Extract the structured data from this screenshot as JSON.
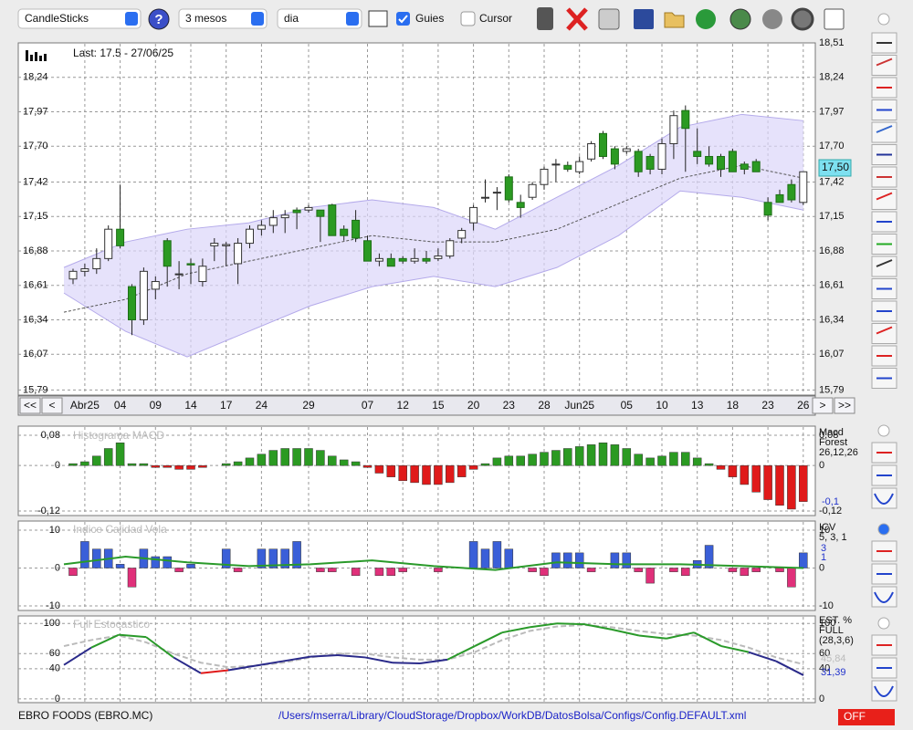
{
  "toolbar": {
    "chart_type": "CandleSticks",
    "period": "3 mesos",
    "interval": "dia",
    "guides": "Guies",
    "cursor": "Cursor"
  },
  "main": {
    "last": "Last: 17.5 - 27/06/25",
    "price_label": "17,50",
    "nav": [
      "<<",
      "<",
      ">",
      ">>"
    ],
    "ylim": [
      15.75,
      18.51
    ],
    "yticks": [
      {
        "value": 18.51,
        "label": "18,51"
      },
      {
        "value": 18.24,
        "label": "18,24"
      },
      {
        "value": 17.97,
        "label": "17,97"
      },
      {
        "value": 17.7,
        "label": "17,70"
      },
      {
        "value": 17.42,
        "label": "17,42"
      },
      {
        "value": 17.15,
        "label": "17,15"
      },
      {
        "value": 16.88,
        "label": "16,88"
      },
      {
        "value": 16.61,
        "label": "16,61"
      },
      {
        "value": 16.34,
        "label": "16,34"
      },
      {
        "value": 16.07,
        "label": "16,07"
      },
      {
        "value": 15.79,
        "label": "15,79"
      }
    ],
    "dates": [
      null,
      "Abr25",
      null,
      null,
      "04",
      null,
      null,
      "09",
      null,
      null,
      "14",
      null,
      null,
      "17",
      null,
      null,
      "24",
      null,
      null,
      null,
      "29",
      null,
      null,
      null,
      null,
      "07",
      null,
      null,
      "12",
      null,
      null,
      "15",
      null,
      null,
      "20",
      null,
      null,
      "23",
      null,
      null,
      "28",
      null,
      null,
      "Jun25",
      null,
      null,
      null,
      "05",
      null,
      null,
      "10",
      null,
      null,
      "13",
      null,
      null,
      "18",
      null,
      null,
      "23",
      null,
      null,
      "26"
    ],
    "candles": [
      [
        16.66,
        16.74,
        16.62,
        16.72
      ],
      [
        16.72,
        16.78,
        16.68,
        16.74
      ],
      [
        16.74,
        16.9,
        16.7,
        16.82
      ],
      [
        16.82,
        17.08,
        16.8,
        17.05
      ],
      [
        17.05,
        17.4,
        16.9,
        16.92
      ],
      [
        16.6,
        16.62,
        16.22,
        16.34
      ],
      [
        16.34,
        16.75,
        16.3,
        16.72
      ],
      [
        16.58,
        16.68,
        16.5,
        16.64
      ],
      [
        16.96,
        16.98,
        16.6,
        16.76
      ],
      [
        16.7,
        16.8,
        16.58,
        16.7
      ],
      [
        16.78,
        16.82,
        16.62,
        16.77
      ],
      [
        16.64,
        16.82,
        16.6,
        16.76
      ],
      [
        16.92,
        16.98,
        16.8,
        16.94
      ],
      [
        16.92,
        16.95,
        16.76,
        16.93
      ],
      [
        16.78,
        16.98,
        16.62,
        16.94
      ],
      [
        16.94,
        17.08,
        16.9,
        17.05
      ],
      [
        17.05,
        17.12,
        17.0,
        17.08
      ],
      [
        17.08,
        17.2,
        17.02,
        17.14
      ],
      [
        17.14,
        17.2,
        17.02,
        17.16
      ],
      [
        17.2,
        17.22,
        17.05,
        17.18
      ],
      [
        17.2,
        17.24,
        17.18,
        17.22
      ],
      [
        17.2,
        17.2,
        16.95,
        17.15
      ],
      [
        17.24,
        17.25,
        17.0,
        17.0
      ],
      [
        17.05,
        17.08,
        16.96,
        17.0
      ],
      [
        17.12,
        17.2,
        16.95,
        16.98
      ],
      [
        16.96,
        17.0,
        16.8,
        16.8
      ],
      [
        16.8,
        16.86,
        16.76,
        16.82
      ],
      [
        16.82,
        16.86,
        16.76,
        16.76
      ],
      [
        16.82,
        16.84,
        16.78,
        16.8
      ],
      [
        16.8,
        16.9,
        16.78,
        16.82
      ],
      [
        16.82,
        16.88,
        16.78,
        16.8
      ],
      [
        16.82,
        16.9,
        16.8,
        16.84
      ],
      [
        16.84,
        16.98,
        16.82,
        16.96
      ],
      [
        16.98,
        17.06,
        16.94,
        17.04
      ],
      [
        17.1,
        17.24,
        17.04,
        17.22
      ],
      [
        17.3,
        17.44,
        17.26,
        17.3
      ],
      [
        17.34,
        17.38,
        17.2,
        17.34
      ],
      [
        17.46,
        17.48,
        17.26,
        17.28
      ],
      [
        17.26,
        17.32,
        17.14,
        17.22
      ],
      [
        17.3,
        17.42,
        17.28,
        17.4
      ],
      [
        17.4,
        17.54,
        17.36,
        17.52
      ],
      [
        17.56,
        17.6,
        17.42,
        17.56
      ],
      [
        17.55,
        17.58,
        17.5,
        17.52
      ],
      [
        17.5,
        17.62,
        17.48,
        17.58
      ],
      [
        17.6,
        17.74,
        17.58,
        17.72
      ],
      [
        17.8,
        17.82,
        17.6,
        17.62
      ],
      [
        17.68,
        17.7,
        17.52,
        17.56
      ],
      [
        17.66,
        17.7,
        17.64,
        17.68
      ],
      [
        17.66,
        17.68,
        17.46,
        17.5
      ],
      [
        17.62,
        17.64,
        17.48,
        17.52
      ],
      [
        17.52,
        17.76,
        17.48,
        17.72
      ],
      [
        17.72,
        17.98,
        17.6,
        17.94
      ],
      [
        17.98,
        18.02,
        17.5,
        17.84
      ],
      [
        17.66,
        17.84,
        17.56,
        17.62
      ],
      [
        17.62,
        17.7,
        17.54,
        17.56
      ],
      [
        17.62,
        17.64,
        17.46,
        17.52
      ],
      [
        17.66,
        17.68,
        17.5,
        17.5
      ],
      [
        17.56,
        17.58,
        17.48,
        17.52
      ],
      [
        17.58,
        17.6,
        17.5,
        17.5
      ],
      [
        17.26,
        17.3,
        17.12,
        17.16
      ],
      [
        17.32,
        17.36,
        17.28,
        17.26
      ],
      [
        17.4,
        17.44,
        17.26,
        17.28
      ],
      [
        17.26,
        17.5,
        17.24,
        17.5
      ]
    ],
    "bands": {
      "upper": [
        16.75,
        16.95,
        17.05,
        17.1,
        17.22,
        17.28,
        17.22,
        17.05,
        17.3,
        17.55,
        17.85,
        17.95,
        17.9
      ],
      "middle": [
        16.4,
        16.5,
        16.7,
        16.8,
        16.9,
        17.0,
        16.95,
        16.95,
        17.05,
        17.25,
        17.45,
        17.55,
        17.45
      ],
      "lower": [
        16.55,
        16.25,
        16.05,
        16.25,
        16.45,
        16.6,
        16.68,
        16.6,
        16.75,
        17.0,
        17.35,
        17.3,
        17.2
      ]
    }
  },
  "macd": {
    "title": "Histograma MACD",
    "legend": [
      "Macd",
      "Forest",
      "26,12,26"
    ],
    "readout": "-0,1",
    "ylim": [
      -0.132,
      0.104
    ],
    "yticks": [
      {
        "value": 0.08,
        "label": "0,08"
      },
      0,
      {
        "value": -0.12,
        "label": "-0,12"
      }
    ],
    "values": [
      0.005,
      0.01,
      0.025,
      0.045,
      0.06,
      0.005,
      0.005,
      -0.005,
      -0.005,
      -0.01,
      -0.01,
      -0.005,
      0,
      0.005,
      0.01,
      0.02,
      0.03,
      0.04,
      0.045,
      0.045,
      0.045,
      0.04,
      0.025,
      0.015,
      0.01,
      -0.005,
      -0.02,
      -0.03,
      -0.04,
      -0.045,
      -0.05,
      -0.05,
      -0.045,
      -0.03,
      -0.01,
      0.005,
      0.02,
      0.025,
      0.025,
      0.03,
      0.035,
      0.04,
      0.045,
      0.05,
      0.055,
      0.06,
      0.055,
      0.045,
      0.03,
      0.02,
      0.025,
      0.035,
      0.035,
      0.02,
      0.005,
      -0.01,
      -0.03,
      -0.05,
      -0.07,
      -0.09,
      -0.105,
      -0.115,
      -0.095
    ]
  },
  "icv": {
    "title": "Indice Calidad Vela",
    "legend": [
      "ICV",
      "5, 3, 1"
    ],
    "readouts": [
      "3",
      "1"
    ],
    "ylim": [
      -11.2,
      12.4
    ],
    "yticks": [
      10,
      0,
      -10
    ],
    "values": [
      -2,
      7,
      5,
      5,
      1,
      -5,
      5,
      3,
      3,
      -1,
      1,
      0,
      0,
      5,
      -1,
      0,
      5,
      5,
      5,
      7,
      0,
      -1,
      -1,
      0,
      -2,
      0,
      -2,
      -2,
      -1,
      0,
      0,
      -1,
      0,
      0,
      7,
      5,
      7,
      5,
      0,
      -1,
      -2,
      4,
      4,
      4,
      -1,
      0,
      4,
      4,
      -1,
      -4,
      0,
      -1,
      -2,
      2,
      6,
      0,
      -1,
      -2,
      -1,
      0,
      -1,
      -5,
      4
    ],
    "line": [
      1,
      3,
      1.5,
      0.5,
      1,
      2,
      0.5,
      -0.5,
      1.5,
      1,
      1,
      0.5,
      0
    ]
  },
  "stoch": {
    "title": "Full Estocastico",
    "legend": [
      "EST. %",
      "FULL",
      "(28,3,6)"
    ],
    "readouts": [
      "45,84",
      "31,39"
    ],
    "ylim": [
      -5,
      110
    ],
    "yticks": [
      100,
      60,
      40,
      0
    ],
    "main": [
      45,
      68,
      85,
      82,
      55,
      34,
      38,
      44,
      50,
      56,
      58,
      55,
      48,
      47,
      52,
      70,
      88,
      95,
      100,
      99,
      92,
      84,
      80,
      88,
      70,
      62,
      50,
      31.39
    ],
    "signal": [
      70,
      78,
      84,
      75,
      60,
      48,
      42,
      44,
      48,
      55,
      60,
      60,
      55,
      52,
      52,
      62,
      78,
      90,
      96,
      98,
      95,
      90,
      86,
      84,
      78,
      68,
      55,
      45.84
    ]
  },
  "status": {
    "symbol": "EBRO FOODS (EBRO.MC)",
    "path": "/Users/mserra/Library/CloudStorage/Dropbox/WorkDB/DatosBolsa/Configs/Config.DEFAULT.xml",
    "state": "OFF"
  }
}
